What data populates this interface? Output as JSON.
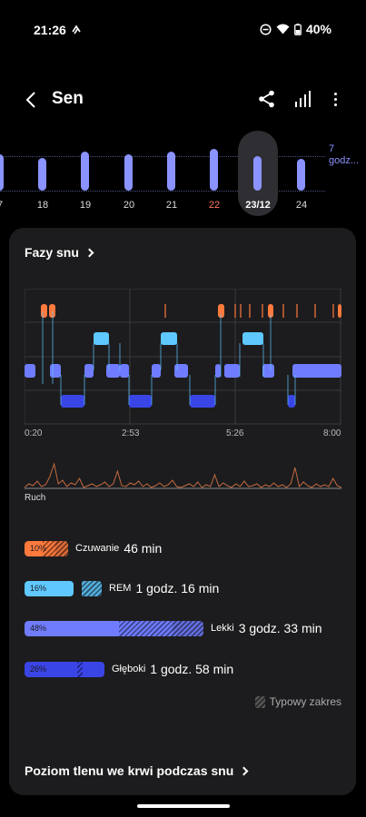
{
  "status": {
    "time": "21:26",
    "battery": "40%"
  },
  "header": {
    "title": "Sen"
  },
  "week": {
    "goal": [
      "7",
      "godz..."
    ],
    "accent": "#8a93ff",
    "days": [
      {
        "label": "7",
        "minutes": 420,
        "weekend": false,
        "selected": false
      },
      {
        "label": "18",
        "minutes": 380,
        "weekend": false,
        "selected": false
      },
      {
        "label": "19",
        "minutes": 450,
        "weekend": false,
        "selected": false
      },
      {
        "label": "20",
        "minutes": 420,
        "weekend": false,
        "selected": false
      },
      {
        "label": "21",
        "minutes": 445,
        "weekend": false,
        "selected": false
      },
      {
        "label": "22",
        "minutes": 480,
        "weekend": true,
        "selected": false
      },
      {
        "label": "23/12",
        "minutes": 400,
        "weekend": false,
        "selected": true
      },
      {
        "label": "24",
        "minutes": 370,
        "weekend": false,
        "selected": false
      }
    ]
  },
  "phases": {
    "title": "Fazy snu",
    "time_labels": [
      "0:20",
      "2:53",
      "5:26",
      "8:00"
    ],
    "movement_label": "Ruch",
    "colors": {
      "awake": "#ff7a3d",
      "rem": "#5ec8ff",
      "light": "#6f7cff",
      "deep": "#3a45e6"
    },
    "stages": [
      {
        "key": "awake",
        "percent": "10%",
        "fill": 0.1,
        "typical": 0.14,
        "name": "Czuwanie",
        "duration": "46 min"
      },
      {
        "key": "rem",
        "percent": "16%",
        "fill": 0.16,
        "typical": 0.22,
        "name": "REM",
        "duration": "1 godz. 16 min"
      },
      {
        "key": "light",
        "percent": "48%",
        "fill": 0.48,
        "typical": 0.58,
        "name": "Lekki",
        "duration": "3 godz. 33 min"
      },
      {
        "key": "deep",
        "percent": "26%",
        "fill": 0.26,
        "typical": 0.26,
        "name": "Głęboki",
        "duration": "1 godz. 58 min"
      }
    ],
    "typical_label": "Typowy zakres"
  },
  "spo2": {
    "title": "Poziom tlenu we krwi podczas snu"
  }
}
